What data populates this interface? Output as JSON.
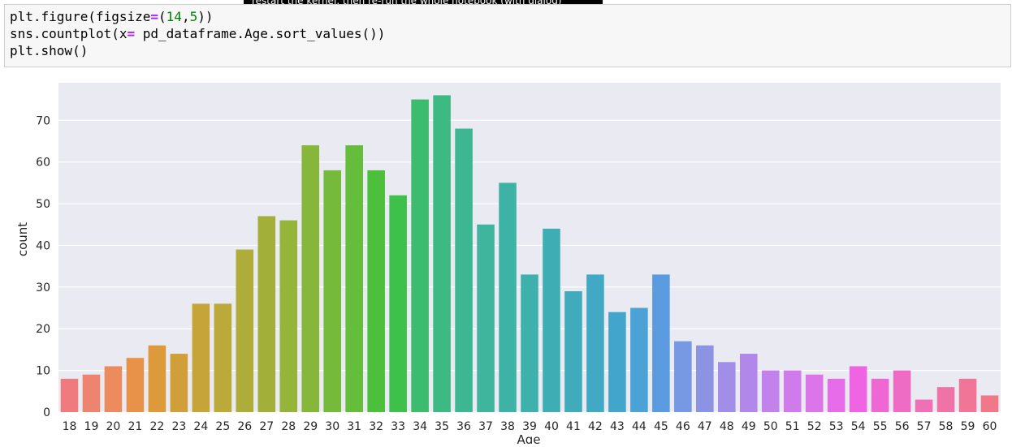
{
  "tooltip": {
    "text": "restart the kernel, then re-run the whole notebook (with dialog)"
  },
  "code_cell": {
    "line1_a": "plt.figure(figsize",
    "line1_op": "=",
    "line1_b": "(",
    "line1_num1": "14",
    "line1_c": ",",
    "line1_num2": "5",
    "line1_d": "))",
    "line2_a": "sns.countplot(x",
    "line2_op": "=",
    "line2_b": " pd_dataframe.Age.sort_values())",
    "line3": "plt.show()"
  },
  "chart_data": {
    "type": "bar",
    "xlabel": "Age",
    "ylabel": "count",
    "ylim": [
      0,
      79
    ],
    "yticks": [
      0,
      10,
      20,
      30,
      40,
      50,
      60,
      70
    ],
    "grid": true,
    "background": "#eaeaf2",
    "categories": [
      "18",
      "19",
      "20",
      "21",
      "22",
      "23",
      "24",
      "25",
      "26",
      "27",
      "28",
      "29",
      "30",
      "31",
      "32",
      "33",
      "34",
      "35",
      "36",
      "37",
      "38",
      "39",
      "40",
      "41",
      "42",
      "43",
      "44",
      "45",
      "46",
      "47",
      "48",
      "49",
      "50",
      "51",
      "52",
      "53",
      "54",
      "55",
      "56",
      "57",
      "58",
      "59",
      "60"
    ],
    "values": [
      8,
      9,
      11,
      13,
      16,
      14,
      26,
      26,
      39,
      47,
      46,
      64,
      58,
      64,
      58,
      52,
      75,
      76,
      68,
      45,
      55,
      33,
      44,
      29,
      33,
      24,
      25,
      33,
      17,
      16,
      12,
      14,
      10,
      10,
      9,
      8,
      11,
      8,
      10,
      3,
      6,
      8,
      4
    ],
    "colors": [
      "#f07b7e",
      "#ee8470",
      "#eb8b5e",
      "#e89249",
      "#dd9a3a",
      "#d19f3a",
      "#c6a43a",
      "#bba93a",
      "#afad3a",
      "#a2b03a",
      "#95b43a",
      "#86b73a",
      "#76ba3b",
      "#64bd3b",
      "#4cc03b",
      "#3ec14b",
      "#3dbb6f",
      "#3db983",
      "#3db791",
      "#3eb59c",
      "#3eb3a5",
      "#3eb1ad",
      "#3faeb4",
      "#40acbb",
      "#41a9c3",
      "#42a6cc",
      "#4aa2d6",
      "#5a9cdf",
      "#7798e3",
      "#8d93e3",
      "#a08ee8",
      "#b188ea",
      "#c281eb",
      "#cf7beb",
      "#dc74ea",
      "#e76ce9",
      "#ee64e2",
      "#ef67d3",
      "#ef6cc4",
      "#ef70b5",
      "#ef73a6",
      "#f07597",
      "#f07888"
    ]
  }
}
